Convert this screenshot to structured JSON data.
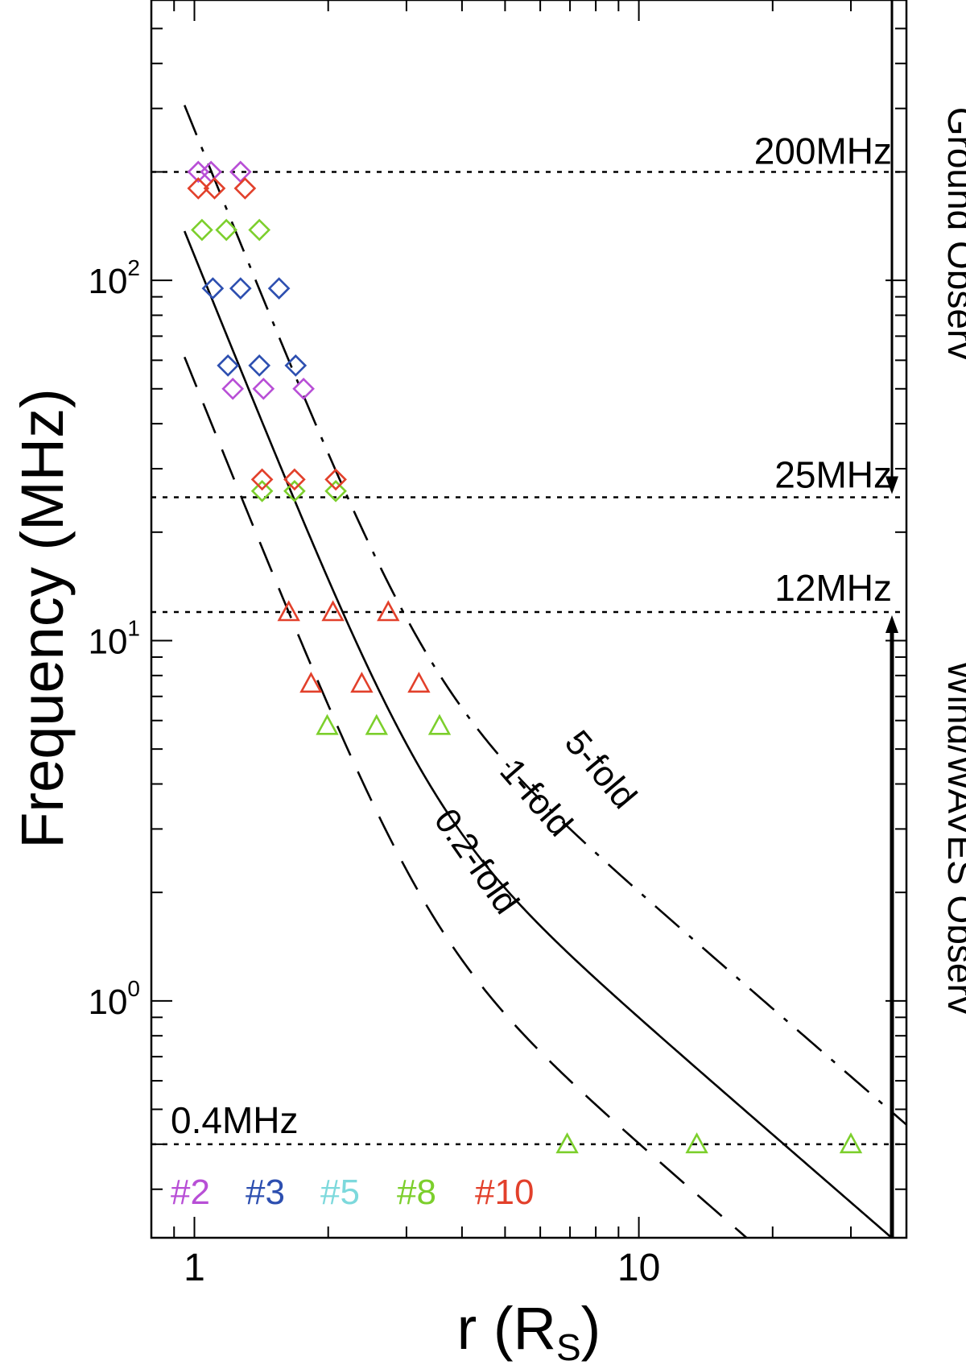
{
  "chart_data": {
    "type": "scatter",
    "xscale": "log",
    "yscale": "log",
    "xlim": [
      0.8,
      40
    ],
    "ylim": [
      0.22,
      600
    ],
    "xlabel_main": "r (R",
    "xlabel_sub": "S",
    "xlabel_close": ")",
    "ylabel": "Frequency (MHz)",
    "xticks": [
      {
        "value": 1,
        "label": "1"
      },
      {
        "value": 10,
        "label": "10"
      }
    ],
    "yticks": [
      {
        "value": 100,
        "base": "10",
        "exp": "2"
      },
      {
        "value": 10,
        "base": "10",
        "exp": "1"
      },
      {
        "value": 1,
        "base": "10",
        "exp": "0"
      }
    ],
    "reference_lines": [
      {
        "freq": 200,
        "label": "200MHz"
      },
      {
        "freq": 25,
        "label": "25MHz"
      },
      {
        "freq": 12,
        "label": "12MHz"
      },
      {
        "freq": 0.4,
        "label": "0.4MHz"
      }
    ],
    "models": [
      {
        "name": "1-fold",
        "label": "1-fold",
        "style": "solid",
        "multiplier": 1
      },
      {
        "name": "5-fold",
        "label": "5-fold",
        "style": "dashdot",
        "multiplier": 5
      },
      {
        "name": "0.2-fold",
        "label": "0.2-fold",
        "style": "dashed",
        "multiplier": 0.2
      }
    ],
    "instrument_ranges": [
      {
        "label": "Ground Observ",
        "from_freq": 600,
        "to_freq": 25
      },
      {
        "label": "Wind/WAVES Observ",
        "from_freq": 0.22,
        "to_freq": 12
      }
    ],
    "series": [
      {
        "name": "#2",
        "color": "#b84fd6",
        "marker": "diamond",
        "points": [
          [
            1.02,
            200
          ],
          [
            1.09,
            200
          ],
          [
            1.27,
            200
          ],
          [
            1.22,
            50
          ],
          [
            1.43,
            50
          ],
          [
            1.76,
            50
          ]
        ]
      },
      {
        "name": "#3",
        "color": "#2d4fb0",
        "marker": "diamond",
        "points": [
          [
            1.1,
            95
          ],
          [
            1.27,
            95
          ],
          [
            1.55,
            95
          ],
          [
            1.19,
            58
          ],
          [
            1.4,
            58
          ],
          [
            1.69,
            58
          ]
        ]
      },
      {
        "name": "#5",
        "color": "#7dd9dc",
        "marker": "diamond",
        "points": []
      },
      {
        "name": "#8",
        "color": "#7ccf2c",
        "marker": "mixed",
        "points": [
          [
            1.04,
            138,
            "diamond"
          ],
          [
            1.18,
            138,
            "diamond"
          ],
          [
            1.4,
            138,
            "diamond"
          ],
          [
            1.42,
            26,
            "diamond"
          ],
          [
            1.68,
            26,
            "diamond"
          ],
          [
            2.08,
            26,
            "diamond"
          ],
          [
            1.99,
            5.8,
            "triangle"
          ],
          [
            2.57,
            5.8,
            "triangle"
          ],
          [
            3.56,
            5.8,
            "triangle"
          ],
          [
            6.9,
            0.4,
            "triangle"
          ],
          [
            13.5,
            0.4,
            "triangle"
          ],
          [
            30,
            0.4,
            "triangle"
          ]
        ]
      },
      {
        "name": "#10",
        "color": "#e2402b",
        "marker": "mixed",
        "points": [
          [
            1.02,
            180,
            "diamond"
          ],
          [
            1.11,
            180,
            "diamond"
          ],
          [
            1.3,
            180,
            "diamond"
          ],
          [
            1.42,
            28,
            "diamond"
          ],
          [
            1.68,
            28,
            "diamond"
          ],
          [
            2.08,
            28,
            "diamond"
          ],
          [
            1.63,
            12,
            "triangle"
          ],
          [
            2.05,
            12,
            "triangle"
          ],
          [
            2.73,
            12,
            "triangle"
          ],
          [
            1.83,
            7.6,
            "triangle"
          ],
          [
            2.38,
            7.6,
            "triangle"
          ],
          [
            3.2,
            7.6,
            "triangle"
          ]
        ]
      }
    ]
  }
}
